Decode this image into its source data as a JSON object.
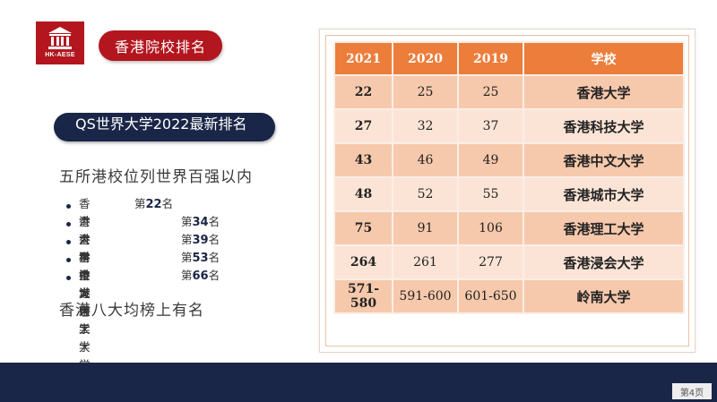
{
  "logo": {
    "text": "HK-AESE"
  },
  "header": {
    "title": "香港院校排名"
  },
  "subtitle": "QS世界大学2022最新排名",
  "lead": "五所港校位列世界百强以内",
  "rank_list": [
    {
      "name": "香港大学",
      "prefix": "第",
      "rank": "22",
      "suffix": "名"
    },
    {
      "name": "香港科技大学",
      "prefix": "第",
      "rank": "34",
      "suffix": "名"
    },
    {
      "name": "香港中文大学",
      "prefix": "第",
      "rank": "39",
      "suffix": "名"
    },
    {
      "name": "香港城市大学",
      "prefix": "第",
      "rank": "53",
      "suffix": "名"
    },
    {
      "name": "香港理工大学",
      "prefix": "第",
      "rank": "66",
      "suffix": "名"
    }
  ],
  "closing": "香港八大均榜上有名",
  "table": {
    "headers": [
      "2021",
      "2020",
      "2019",
      "学校"
    ],
    "rows": [
      [
        "22",
        "25",
        "25",
        "香港大学"
      ],
      [
        "27",
        "32",
        "37",
        "香港科技大学"
      ],
      [
        "43",
        "46",
        "49",
        "香港中文大学"
      ],
      [
        "48",
        "52",
        "55",
        "香港城市大学"
      ],
      [
        "75",
        "91",
        "106",
        "香港理工大学"
      ],
      [
        "264",
        "261",
        "277",
        "香港浸会大学"
      ],
      [
        "571-580",
        "591-600",
        "601-650",
        "岭南大学"
      ]
    ]
  },
  "page_number": "第4页",
  "colors": {
    "brand_red": "#b3161e",
    "navy": "#1a2647",
    "header_orange": "#ec7d3a",
    "row_dark": "#f6c9ac",
    "row_light": "#fbe4d6"
  }
}
